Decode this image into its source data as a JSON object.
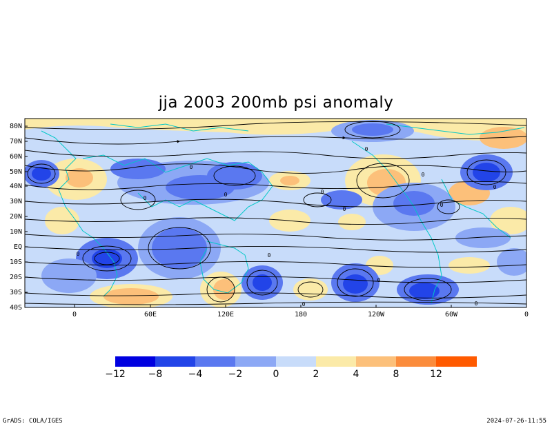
{
  "title": "jja 2003 200mb psi anomaly",
  "map": {
    "lat_labels": [
      "80N",
      "70N",
      "60N",
      "50N",
      "40N",
      "30N",
      "20N",
      "10N",
      "EQ",
      "10S",
      "20S",
      "30S",
      "40S"
    ],
    "lon_labels": [
      "0",
      "60E",
      "120E",
      "180",
      "120W",
      "60W",
      "0"
    ],
    "contour_labels": [
      "0",
      "0",
      "0",
      "0",
      "0",
      "0",
      "0",
      "0",
      "0",
      "0",
      "0",
      "0",
      "0",
      "0"
    ]
  },
  "colorbar": {
    "labels": [
      "−12",
      "−8",
      "−4",
      "−2",
      "0",
      "2",
      "4",
      "8",
      "12"
    ],
    "colors": [
      "#0000e0",
      "#2244e8",
      "#5a78f0",
      "#8ca8f5",
      "#c8dcfa",
      "#fbeaa8",
      "#fcc07a",
      "#fb8c3c",
      "#ff5a00"
    ]
  },
  "footer": {
    "left": "GrADS: COLA/IGES",
    "right": "2024-07-26-11:55"
  }
}
